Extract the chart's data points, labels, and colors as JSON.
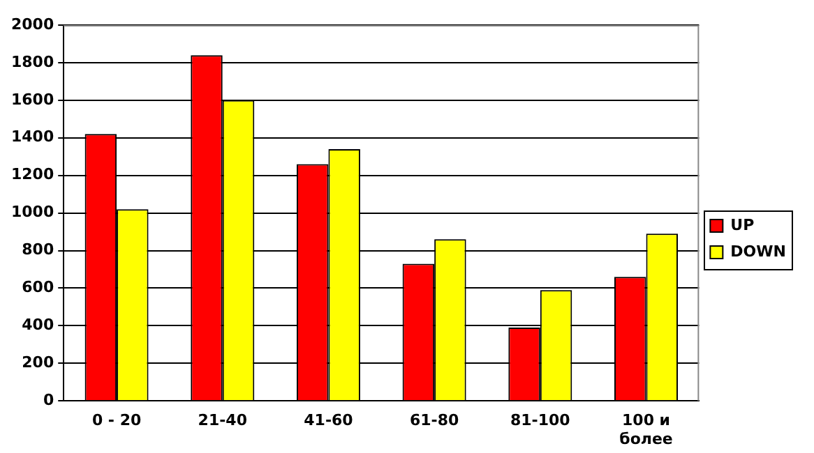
{
  "chart_data": {
    "type": "bar",
    "categories": [
      "0 - 20",
      "21-40",
      "41-60",
      "61-80",
      "81-100",
      "100 и более"
    ],
    "series": [
      {
        "name": "UP",
        "color": "#ff0000",
        "values": [
          1420,
          1840,
          1260,
          730,
          390,
          660
        ]
      },
      {
        "name": "DOWN",
        "color": "#ffff00",
        "values": [
          1020,
          1600,
          1340,
          860,
          590,
          890
        ]
      }
    ],
    "ylim": [
      0,
      2000
    ],
    "yticks": [
      0,
      200,
      400,
      600,
      800,
      1000,
      1200,
      1400,
      1600,
      1800,
      2000
    ],
    "grid": "y",
    "legend": "right"
  }
}
